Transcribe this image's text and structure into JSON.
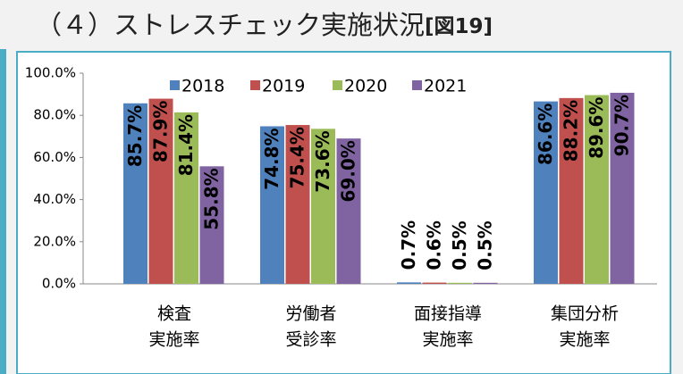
{
  "chart_data": {
    "type": "bar",
    "title": "（４）ストレスチェック実施状況",
    "figure_label": "[図19]",
    "categories": [
      [
        "検査",
        "実施率"
      ],
      [
        "労働者",
        "受診率"
      ],
      [
        "面接指導",
        "実施率"
      ],
      [
        "集団分析",
        "実施率"
      ]
    ],
    "series": [
      {
        "name": "2018",
        "color": "#4f81bd",
        "values": [
          85.7,
          74.8,
          0.7,
          86.6
        ],
        "value_labels": [
          "85.7%",
          "74.8%",
          "0.7%",
          "86.6%"
        ]
      },
      {
        "name": "2019",
        "color": "#c0504d",
        "values": [
          87.9,
          75.4,
          0.6,
          88.2
        ],
        "value_labels": [
          "87.9%",
          "75.4%",
          "0.6%",
          "88.2%"
        ]
      },
      {
        "name": "2020",
        "color": "#9bbb59",
        "values": [
          81.4,
          73.6,
          0.5,
          89.6
        ],
        "value_labels": [
          "81.4%",
          "73.6%",
          "0.5%",
          "89.6%"
        ]
      },
      {
        "name": "2021",
        "color": "#8064a2",
        "values": [
          55.8,
          69.0,
          0.5,
          90.7
        ],
        "value_labels": [
          "55.8%",
          "69.0%",
          "0.5%",
          "90.7%"
        ]
      }
    ],
    "ylim": [
      0,
      100
    ],
    "yticks": [
      {
        "value": 0,
        "label": "0.0%"
      },
      {
        "value": 20,
        "label": "20.0%"
      },
      {
        "value": 40,
        "label": "40.0%"
      },
      {
        "value": 60,
        "label": "60.0%"
      },
      {
        "value": 80,
        "label": "80.0%"
      },
      {
        "value": 100,
        "label": "100.0%"
      }
    ],
    "grid": false,
    "legend": "top"
  }
}
